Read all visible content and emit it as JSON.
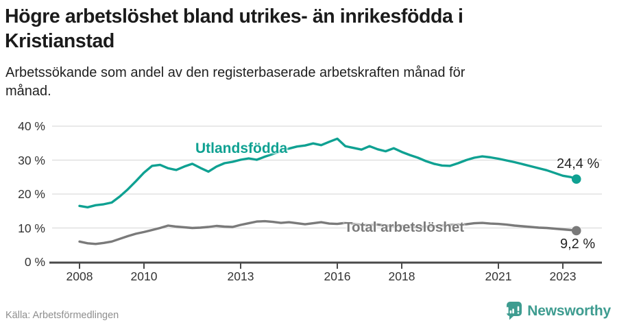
{
  "header": {
    "title_lines": [
      "Högre arbetslöshet bland utrikes- än inrikesfödda i",
      "Kristianstad"
    ],
    "subtitle_lines": [
      "Arbetssökande som andel av den registerbaserade arbetskraften månad för",
      "månad."
    ]
  },
  "chart_data": {
    "type": "line",
    "title": "Arbetssökande som andel av den registerbaserade arbetskraften månad för månad",
    "grid": "horizontal",
    "ylim": [
      0,
      40
    ],
    "xlim": [
      2008,
      2023.6
    ],
    "yticks": [
      {
        "value": 40,
        "label": "40 %"
      },
      {
        "value": 30,
        "label": "30 %"
      },
      {
        "value": 20,
        "label": "20 %"
      },
      {
        "value": 10,
        "label": "10 %"
      },
      {
        "value": 0,
        "label": "0 %"
      }
    ],
    "xticks": [
      {
        "value": 2008,
        "label": "2008"
      },
      {
        "value": 2010,
        "label": "2010"
      },
      {
        "value": 2013,
        "label": "2013"
      },
      {
        "value": 2016,
        "label": "2016"
      },
      {
        "value": 2018,
        "label": "2018"
      },
      {
        "value": 2021,
        "label": "2021"
      },
      {
        "value": 2023,
        "label": "2023"
      }
    ],
    "x": [
      2008,
      2008.25,
      2008.5,
      2008.75,
      2009,
      2009.25,
      2009.5,
      2009.75,
      2010,
      2010.25,
      2010.5,
      2010.75,
      2011,
      2011.25,
      2011.5,
      2011.75,
      2012,
      2012.25,
      2012.5,
      2012.75,
      2013,
      2013.25,
      2013.5,
      2013.75,
      2014,
      2014.25,
      2014.5,
      2014.75,
      2015,
      2015.25,
      2015.5,
      2015.75,
      2016,
      2016.25,
      2016.5,
      2016.75,
      2017,
      2017.25,
      2017.5,
      2017.75,
      2018,
      2018.25,
      2018.5,
      2018.75,
      2019,
      2019.25,
      2019.5,
      2019.75,
      2020,
      2020.25,
      2020.5,
      2020.75,
      2021,
      2021.25,
      2021.5,
      2021.75,
      2022,
      2022.25,
      2022.5,
      2022.75,
      2023,
      2023.25,
      2023.42
    ],
    "series": [
      {
        "name": "Utlandsfödda",
        "color": "#0fa192",
        "end_value": 24.4,
        "end_label": "24,4 %",
        "values": [
          16.5,
          16.1,
          16.7,
          17.0,
          17.5,
          19.3,
          21.4,
          23.8,
          26.3,
          28.3,
          28.6,
          27.6,
          27.1,
          28.1,
          28.9,
          27.7,
          26.6,
          28.1,
          29.1,
          29.5,
          30.1,
          30.5,
          30.1,
          31.0,
          31.8,
          32.7,
          33.4,
          34.0,
          34.3,
          34.9,
          34.4,
          35.4,
          36.3,
          34.1,
          33.6,
          33.1,
          34.1,
          33.2,
          32.6,
          33.5,
          32.4,
          31.5,
          30.7,
          29.7,
          28.9,
          28.4,
          28.3,
          29.1,
          30.0,
          30.7,
          31.1,
          30.8,
          30.4,
          29.9,
          29.4,
          28.8,
          28.2,
          27.6,
          27.0,
          26.2,
          25.4,
          25.0,
          24.4
        ]
      },
      {
        "name": "Total arbetslöshet",
        "color": "#7a7a7a",
        "end_value": 9.2,
        "end_label": "9,2 %",
        "values": [
          6.0,
          5.5,
          5.3,
          5.6,
          6.0,
          6.8,
          7.6,
          8.3,
          8.8,
          9.4,
          10.0,
          10.7,
          10.4,
          10.2,
          10.0,
          10.1,
          10.3,
          10.6,
          10.4,
          10.3,
          10.9,
          11.4,
          11.9,
          12.0,
          11.8,
          11.5,
          11.7,
          11.4,
          11.1,
          11.4,
          11.7,
          11.3,
          11.2,
          11.5,
          11.2,
          10.9,
          10.8,
          11.0,
          10.7,
          10.5,
          10.6,
          10.4,
          10.2,
          10.4,
          10.5,
          10.7,
          10.9,
          11.0,
          11.1,
          11.4,
          11.5,
          11.3,
          11.2,
          11.0,
          10.7,
          10.5,
          10.3,
          10.1,
          10.0,
          9.8,
          9.6,
          9.4,
          9.2
        ]
      }
    ]
  },
  "footer": {
    "source": "Källa: Arbetsförmedlingen",
    "brand": "Newsworthy"
  },
  "colors": {
    "accent_teal": "#0fa192",
    "logo_teal": "#3e9c90",
    "series_gray": "#7a7a7a",
    "gridline": "#dcdcdc",
    "axis": "#4a4a4a",
    "tick_text": "#333333",
    "title_text": "#1b1b1b",
    "source_text": "#8e8e8e"
  }
}
